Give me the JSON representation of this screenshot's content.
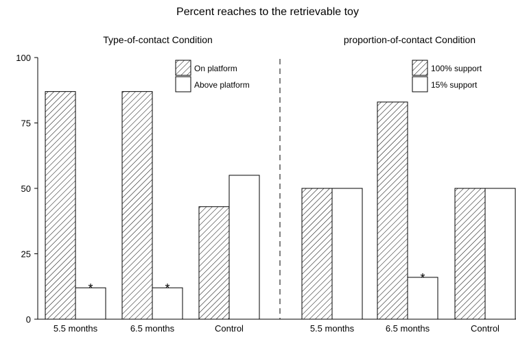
{
  "chart_data": {
    "type": "bar",
    "title": "Percent reaches to the retrievable toy",
    "ylim": [
      0,
      100
    ],
    "yticks": [
      0,
      25,
      50,
      75,
      100
    ],
    "grid": false,
    "fill_colors": {
      "hatched": "#000000",
      "open": "#ffffff"
    },
    "panels": [
      {
        "title": "Type-of-contact Condition",
        "categories": [
          "5.5 months",
          "6.5 months",
          "Control"
        ],
        "legend_position": "top-right",
        "series": [
          {
            "name": "On platform",
            "fill": "hatched",
            "values": [
              87,
              87,
              43
            ]
          },
          {
            "name": "Above platform",
            "fill": "open",
            "values": [
              12,
              12,
              55
            ]
          }
        ],
        "asterisks": [
          {
            "category": "5.5 months",
            "series": "Above platform",
            "label": "*"
          },
          {
            "category": "6.5 months",
            "series": "Above platform",
            "label": "*"
          }
        ]
      },
      {
        "title": "proportion-of-contact Condition",
        "categories": [
          "5.5 months",
          "6.5 months",
          "Control"
        ],
        "legend_position": "top-right",
        "series": [
          {
            "name": "100% support",
            "fill": "hatched",
            "values": [
              50,
              83,
              50
            ]
          },
          {
            "name": "15% support",
            "fill": "open",
            "values": [
              50,
              16,
              50
            ]
          }
        ],
        "asterisks": [
          {
            "category": "6.5 months",
            "series": "15% support",
            "label": "*"
          }
        ]
      }
    ]
  }
}
